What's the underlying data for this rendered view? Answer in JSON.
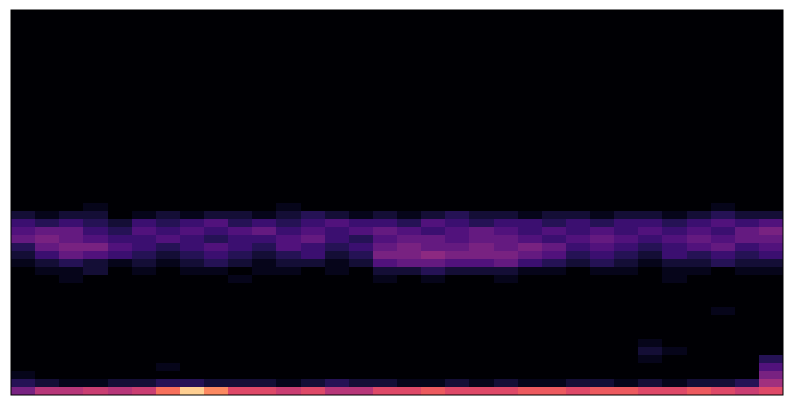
{
  "chart_data": {
    "type": "heatmap",
    "color": "magma",
    "zlim": [
      0,
      1
    ],
    "tick_labels": false,
    "cells": [
      [
        0,
        0,
        0,
        0,
        0,
        0,
        0,
        0,
        0,
        0,
        0,
        0,
        0,
        0,
        0,
        0,
        0,
        0,
        0,
        0,
        0,
        0,
        0,
        0,
        0,
        0,
        0,
        0,
        0,
        0,
        0,
        0
      ],
      [
        0,
        0,
        0,
        0,
        0,
        0,
        0,
        0,
        0,
        0,
        0,
        0,
        0,
        0,
        0,
        0,
        0,
        0,
        0,
        0,
        0,
        0,
        0,
        0,
        0,
        0,
        0,
        0,
        0,
        0,
        0,
        0
      ],
      [
        0,
        0,
        0,
        0,
        0,
        0,
        0,
        0,
        0,
        0,
        0,
        0,
        0,
        0,
        0,
        0,
        0,
        0,
        0,
        0,
        0,
        0,
        0,
        0,
        0,
        0,
        0,
        0,
        0,
        0,
        0,
        0
      ],
      [
        0,
        0,
        0,
        0,
        0,
        0,
        0,
        0,
        0,
        0,
        0,
        0,
        0,
        0,
        0,
        0,
        0,
        0,
        0,
        0,
        0,
        0,
        0,
        0,
        0,
        0,
        0,
        0,
        0,
        0,
        0,
        0
      ],
      [
        0,
        0,
        0,
        0,
        0,
        0,
        0,
        0,
        0,
        0,
        0,
        0,
        0,
        0,
        0,
        0,
        0,
        0,
        0,
        0,
        0,
        0,
        0,
        0,
        0,
        0,
        0,
        0,
        0,
        0,
        0,
        0
      ],
      [
        0,
        0,
        0,
        0,
        0,
        0,
        0,
        0,
        0,
        0,
        0,
        0,
        0,
        0,
        0,
        0,
        0,
        0,
        0,
        0,
        0,
        0,
        0,
        0,
        0,
        0,
        0,
        0,
        0,
        0,
        0,
        0
      ],
      [
        0,
        0,
        0,
        0,
        0,
        0,
        0,
        0,
        0,
        0,
        0,
        0,
        0,
        0,
        0,
        0,
        0,
        0,
        0,
        0,
        0,
        0,
        0,
        0,
        0,
        0,
        0,
        0,
        0,
        0,
        0,
        0
      ],
      [
        0,
        0,
        0,
        0,
        0,
        0,
        0,
        0,
        0,
        0,
        0,
        0,
        0,
        0,
        0,
        0,
        0,
        0,
        0,
        0,
        0,
        0,
        0,
        0,
        0,
        0,
        0,
        0,
        0,
        0,
        0,
        0
      ],
      [
        0,
        0,
        0,
        0,
        0,
        0,
        0,
        0,
        0,
        0,
        0,
        0,
        0,
        0,
        0,
        0,
        0,
        0,
        0,
        0,
        0,
        0,
        0,
        0,
        0,
        0,
        0,
        0,
        0,
        0,
        0,
        0
      ],
      [
        0,
        0,
        0,
        0,
        0,
        0,
        0,
        0,
        0,
        0,
        0,
        0,
        0,
        0,
        0,
        0,
        0,
        0,
        0,
        0,
        0,
        0,
        0,
        0,
        0,
        0,
        0,
        0,
        0,
        0,
        0,
        0
      ],
      [
        0,
        0,
        0,
        0,
        0,
        0,
        0,
        0,
        0,
        0,
        0,
        0,
        0,
        0,
        0,
        0,
        0,
        0,
        0,
        0,
        0,
        0,
        0,
        0,
        0,
        0,
        0,
        0,
        0,
        0,
        0,
        0
      ],
      [
        0,
        0,
        0,
        0,
        0,
        0,
        0,
        0,
        0,
        0,
        0,
        0,
        0,
        0,
        0,
        0,
        0,
        0,
        0,
        0,
        0,
        0,
        0,
        0,
        0,
        0,
        0,
        0,
        0,
        0,
        0,
        0
      ],
      [
        0,
        0,
        0,
        0,
        0,
        0,
        0,
        0,
        0,
        0,
        0,
        0,
        0,
        0,
        0,
        0,
        0,
        0,
        0,
        0,
        0,
        0,
        0,
        0,
        0,
        0,
        0,
        0,
        0,
        0,
        0,
        0
      ],
      [
        0,
        0,
        0,
        0,
        0,
        0,
        0,
        0,
        0,
        0,
        0,
        0,
        0,
        0,
        0,
        0,
        0,
        0,
        0,
        0,
        0,
        0,
        0,
        0,
        0,
        0,
        0,
        0,
        0,
        0,
        0,
        0
      ],
      [
        0,
        0,
        0,
        0,
        0,
        0,
        0,
        0,
        0,
        0,
        0,
        0,
        0,
        0,
        0,
        0,
        0,
        0,
        0,
        0,
        0,
        0,
        0,
        0,
        0,
        0,
        0,
        0,
        0,
        0,
        0,
        0
      ],
      [
        0,
        0,
        0,
        0,
        0,
        0,
        0,
        0,
        0,
        0,
        0,
        0,
        0,
        0,
        0,
        0,
        0,
        0,
        0,
        0,
        0,
        0,
        0,
        0,
        0,
        0,
        0,
        0,
        0,
        0,
        0,
        0
      ],
      [
        0,
        0,
        0,
        0,
        0,
        0,
        0,
        0,
        0,
        0,
        0,
        0,
        0,
        0,
        0,
        0,
        0,
        0,
        0,
        0,
        0,
        0,
        0,
        0,
        0,
        0,
        0,
        0,
        0,
        0,
        0,
        0
      ],
      [
        0,
        0,
        0,
        0,
        0,
        0,
        0,
        0,
        0,
        0,
        0,
        0,
        0,
        0,
        0,
        0,
        0,
        0,
        0,
        0,
        0,
        0,
        0,
        0,
        0,
        0,
        0,
        0,
        0,
        0,
        0,
        0
      ],
      [
        0,
        0,
        0,
        0,
        0,
        0,
        0,
        0,
        0,
        0,
        0,
        0,
        0,
        0,
        0,
        0,
        0,
        0,
        0,
        0,
        0,
        0,
        0,
        0,
        0,
        0,
        0,
        0,
        0,
        0,
        0,
        0
      ],
      [
        0,
        0,
        0,
        0,
        0,
        0,
        0,
        0,
        0,
        0,
        0,
        0,
        0,
        0,
        0,
        0,
        0,
        0,
        0,
        0,
        0,
        0,
        0,
        0,
        0,
        0,
        0,
        0,
        0,
        0,
        0,
        0
      ],
      [
        0,
        0,
        0,
        0,
        0,
        0,
        0,
        0,
        0,
        0,
        0,
        0,
        0,
        0,
        0,
        0,
        0,
        0,
        0,
        0,
        0,
        0,
        0,
        0,
        0,
        0,
        0,
        0,
        0,
        0,
        0,
        0
      ],
      [
        0,
        0,
        0,
        0,
        0,
        0,
        0,
        0,
        0,
        0,
        0,
        0,
        0,
        0,
        0,
        0,
        0,
        0,
        0,
        0,
        0,
        0,
        0,
        0,
        0,
        0,
        0,
        0,
        0,
        0,
        0,
        0
      ],
      [
        0,
        0,
        0,
        0,
        0,
        0,
        0,
        0,
        0,
        0,
        0,
        0,
        0,
        0,
        0,
        0,
        0,
        0,
        0,
        0,
        0,
        0,
        0,
        0,
        0,
        0,
        0,
        0,
        0,
        0,
        0,
        0
      ],
      [
        0,
        0,
        0,
        0,
        0,
        0,
        0,
        0,
        0,
        0,
        0,
        0,
        0,
        0,
        0,
        0,
        0,
        0,
        0,
        0,
        0,
        0,
        0,
        0,
        0,
        0,
        0,
        0,
        0,
        0,
        0,
        0
      ],
      [
        0,
        0,
        0,
        0.05,
        0,
        0,
        0,
        0,
        0,
        0,
        0,
        0.05,
        0,
        0,
        0,
        0,
        0,
        0,
        0,
        0,
        0,
        0,
        0,
        0,
        0,
        0,
        0,
        0,
        0,
        0.05,
        0,
        0
      ],
      [
        0.1,
        0.05,
        0.1,
        0.1,
        0,
        0.05,
        0.1,
        0.05,
        0.1,
        0.1,
        0.05,
        0.1,
        0.15,
        0.1,
        0.05,
        0.1,
        0.05,
        0.1,
        0.15,
        0.1,
        0.1,
        0.05,
        0.1,
        0.1,
        0.05,
        0.1,
        0.1,
        0.05,
        0.1,
        0.15,
        0.1,
        0.1
      ],
      [
        0.2,
        0.15,
        0.2,
        0.15,
        0.1,
        0.2,
        0.15,
        0.2,
        0.25,
        0.15,
        0.2,
        0.15,
        0.2,
        0.25,
        0.2,
        0.2,
        0.15,
        0.25,
        0.2,
        0.15,
        0.2,
        0.2,
        0.15,
        0.2,
        0.15,
        0.2,
        0.2,
        0.15,
        0.2,
        0.25,
        0.2,
        0.25
      ],
      [
        0.25,
        0.3,
        0.3,
        0.2,
        0.15,
        0.25,
        0.2,
        0.25,
        0.2,
        0.25,
        0.3,
        0.2,
        0.25,
        0.2,
        0.25,
        0.3,
        0.25,
        0.2,
        0.25,
        0.3,
        0.25,
        0.2,
        0.25,
        0.2,
        0.25,
        0.2,
        0.25,
        0.2,
        0.25,
        0.2,
        0.3,
        0.35
      ],
      [
        0.3,
        0.35,
        0.3,
        0.25,
        0.2,
        0.2,
        0.25,
        0.2,
        0.15,
        0.2,
        0.2,
        0.25,
        0.3,
        0.2,
        0.15,
        0.25,
        0.3,
        0.3,
        0.25,
        0.3,
        0.3,
        0.25,
        0.2,
        0.25,
        0.3,
        0.25,
        0.2,
        0.25,
        0.3,
        0.25,
        0.3,
        0.3
      ],
      [
        0.15,
        0.3,
        0.35,
        0.35,
        0.25,
        0.2,
        0.15,
        0.2,
        0.25,
        0.2,
        0.15,
        0.25,
        0.2,
        0.15,
        0.2,
        0.3,
        0.35,
        0.3,
        0.3,
        0.35,
        0.3,
        0.35,
        0.3,
        0.2,
        0.25,
        0.2,
        0.15,
        0.2,
        0.25,
        0.3,
        0.2,
        0.25
      ],
      [
        0.1,
        0.2,
        0.3,
        0.25,
        0.2,
        0.15,
        0.1,
        0.15,
        0.2,
        0.15,
        0.1,
        0.15,
        0.2,
        0.1,
        0.15,
        0.35,
        0.35,
        0.4,
        0.35,
        0.35,
        0.35,
        0.3,
        0.25,
        0.15,
        0.2,
        0.15,
        0.1,
        0.2,
        0.15,
        0.2,
        0.15,
        0.2
      ],
      [
        0.05,
        0.1,
        0.15,
        0.1,
        0.05,
        0.1,
        0.05,
        0.1,
        0.15,
        0.1,
        0.05,
        0.1,
        0.1,
        0.05,
        0.1,
        0.25,
        0.3,
        0.3,
        0.25,
        0.25,
        0.3,
        0.2,
        0.15,
        0.1,
        0.15,
        0.1,
        0.05,
        0.1,
        0.1,
        0.15,
        0.1,
        0.1
      ],
      [
        0,
        0.05,
        0.05,
        0.1,
        0,
        0.05,
        0,
        0.05,
        0.05,
        0,
        0.05,
        0.05,
        0,
        0.05,
        0,
        0.1,
        0.1,
        0.15,
        0.1,
        0.1,
        0.1,
        0.05,
        0.05,
        0,
        0.05,
        0.05,
        0,
        0.05,
        0.05,
        0,
        0.05,
        0.05
      ],
      [
        0,
        0,
        0.05,
        0,
        0,
        0,
        0,
        0,
        0,
        0.05,
        0,
        0,
        0,
        0,
        0,
        0.05,
        0,
        0.05,
        0,
        0,
        0.05,
        0,
        0,
        0,
        0,
        0,
        0,
        0.05,
        0,
        0,
        0,
        0
      ],
      [
        0,
        0,
        0,
        0,
        0,
        0,
        0,
        0,
        0,
        0,
        0,
        0,
        0,
        0,
        0,
        0,
        0,
        0,
        0,
        0,
        0,
        0,
        0,
        0,
        0,
        0,
        0,
        0,
        0,
        0,
        0,
        0
      ],
      [
        0,
        0,
        0,
        0,
        0,
        0,
        0,
        0,
        0,
        0,
        0,
        0,
        0,
        0,
        0,
        0,
        0,
        0,
        0,
        0,
        0,
        0,
        0,
        0,
        0,
        0,
        0,
        0,
        0,
        0,
        0,
        0
      ],
      [
        0,
        0,
        0,
        0,
        0,
        0,
        0,
        0,
        0,
        0,
        0,
        0,
        0,
        0,
        0,
        0,
        0,
        0,
        0,
        0,
        0,
        0,
        0,
        0,
        0,
        0,
        0,
        0,
        0,
        0,
        0,
        0
      ],
      [
        0,
        0,
        0,
        0,
        0,
        0,
        0,
        0,
        0,
        0,
        0,
        0,
        0,
        0,
        0,
        0,
        0,
        0,
        0,
        0,
        0,
        0,
        0,
        0,
        0,
        0,
        0,
        0,
        0,
        0.05,
        0,
        0
      ],
      [
        0,
        0,
        0,
        0,
        0,
        0,
        0,
        0,
        0,
        0,
        0,
        0,
        0,
        0,
        0,
        0,
        0,
        0,
        0,
        0,
        0,
        0,
        0,
        0,
        0,
        0,
        0,
        0,
        0,
        0,
        0,
        0
      ],
      [
        0,
        0,
        0,
        0,
        0,
        0,
        0,
        0,
        0,
        0,
        0,
        0,
        0,
        0,
        0,
        0,
        0,
        0,
        0,
        0,
        0,
        0,
        0,
        0,
        0,
        0,
        0,
        0,
        0,
        0,
        0,
        0
      ],
      [
        0,
        0,
        0,
        0,
        0,
        0,
        0,
        0,
        0,
        0,
        0,
        0,
        0,
        0,
        0,
        0,
        0,
        0,
        0,
        0,
        0,
        0,
        0,
        0,
        0,
        0,
        0,
        0,
        0,
        0,
        0,
        0
      ],
      [
        0,
        0,
        0,
        0,
        0,
        0,
        0,
        0,
        0,
        0,
        0,
        0,
        0,
        0,
        0,
        0,
        0,
        0,
        0,
        0,
        0,
        0,
        0,
        0,
        0,
        0,
        0.05,
        0,
        0,
        0,
        0,
        0
      ],
      [
        0,
        0,
        0,
        0,
        0,
        0,
        0,
        0,
        0,
        0,
        0,
        0,
        0,
        0,
        0,
        0,
        0,
        0,
        0,
        0,
        0,
        0,
        0,
        0,
        0,
        0,
        0.1,
        0.05,
        0,
        0,
        0,
        0
      ],
      [
        0,
        0,
        0,
        0,
        0,
        0,
        0,
        0,
        0,
        0,
        0,
        0,
        0,
        0,
        0,
        0,
        0,
        0,
        0,
        0,
        0,
        0,
        0,
        0,
        0,
        0,
        0.05,
        0,
        0,
        0,
        0,
        0.15
      ],
      [
        0,
        0,
        0,
        0,
        0,
        0,
        0.05,
        0,
        0,
        0,
        0,
        0,
        0,
        0,
        0,
        0,
        0,
        0,
        0,
        0,
        0,
        0,
        0,
        0,
        0,
        0,
        0,
        0,
        0,
        0,
        0,
        0.25
      ],
      [
        0.05,
        0,
        0,
        0,
        0,
        0,
        0,
        0,
        0,
        0,
        0,
        0,
        0,
        0,
        0,
        0,
        0,
        0,
        0,
        0,
        0,
        0,
        0,
        0,
        0,
        0,
        0,
        0,
        0,
        0,
        0,
        0.35
      ],
      [
        0.15,
        0.1,
        0.05,
        0.05,
        0.1,
        0.1,
        0.15,
        0.15,
        0.1,
        0.1,
        0.1,
        0.05,
        0.1,
        0.15,
        0.1,
        0.1,
        0.05,
        0.05,
        0.1,
        0.05,
        0.1,
        0.05,
        0.05,
        0.1,
        0.1,
        0.05,
        0.1,
        0.05,
        0.1,
        0.1,
        0.15,
        0.45
      ],
      [
        0.35,
        0.5,
        0.5,
        0.55,
        0.5,
        0.55,
        0.7,
        0.9,
        0.75,
        0.6,
        0.6,
        0.55,
        0.6,
        0.5,
        0.5,
        0.6,
        0.6,
        0.65,
        0.6,
        0.6,
        0.6,
        0.65,
        0.65,
        0.6,
        0.65,
        0.65,
        0.6,
        0.6,
        0.65,
        0.6,
        0.55,
        0.6
      ]
    ]
  }
}
